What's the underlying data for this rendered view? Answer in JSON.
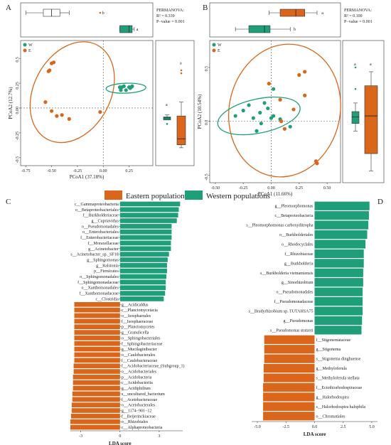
{
  "colors": {
    "W": "#1f9e7a",
    "E": "#d9661a",
    "box": "#555555"
  },
  "legend": {
    "eastern": "Eastern populations",
    "western": "Western populations"
  },
  "chart_data": [
    {
      "panel": "A",
      "type": "scatter",
      "xlabel": "PCoA1 (37.18%)",
      "ylabel": "PCoA2 (12.7%)",
      "xlim": [
        -0.8,
        0.48
      ],
      "ylim": [
        -0.58,
        0.68
      ],
      "xticks": [
        "-0.75",
        "-0.50",
        "-0.25",
        "0.00",
        "0.25"
      ],
      "yticks": [
        "0.5",
        "0.25",
        "0.00",
        "-0.25",
        "-0.5"
      ],
      "legend": [
        "W",
        "E"
      ],
      "permanova": [
        "PERMANOVA:",
        "R² = 0.339",
        "P−value = 0.001"
      ],
      "top_box_letters": [
        "b",
        "a"
      ],
      "side_box_letters": [
        "a",
        "a"
      ],
      "series": [
        {
          "name": "W",
          "points": [
            [
              0.16,
              0.21
            ],
            [
              0.18,
              0.21
            ],
            [
              0.2,
              0.22
            ],
            [
              0.22,
              0.18
            ],
            [
              0.25,
              0.21
            ],
            [
              0.26,
              0.2
            ],
            [
              0.27,
              0.21
            ],
            [
              0.28,
              0.22
            ],
            [
              0.17,
              0.18
            ]
          ]
        },
        {
          "name": "E",
          "points": [
            [
              -0.5,
              0.45
            ],
            [
              -0.48,
              0.46
            ],
            [
              -0.53,
              0.37
            ],
            [
              -0.52,
              0.38
            ],
            [
              -0.56,
              0.06
            ],
            [
              -0.5,
              -0.03
            ],
            [
              -0.45,
              -0.08
            ],
            [
              -0.4,
              -0.07
            ],
            [
              -0.33,
              -0.11
            ],
            [
              -0.03,
              -0.04
            ]
          ]
        }
      ]
    },
    {
      "panel": "B",
      "type": "scatter",
      "xlabel": "PCoA1 (11.66%)",
      "ylabel": "PCoA2 (10.54%)",
      "xlim": [
        -0.55,
        0.62
      ],
      "ylim": [
        -0.57,
        0.75
      ],
      "xticks": [
        "-0.50",
        "-0.25",
        "0.00",
        "0.25",
        "0.50"
      ],
      "yticks": [
        "0.5",
        "0.0",
        "-0.5"
      ],
      "legend": [
        "W",
        "E"
      ],
      "permanova": [
        "PERMANOVA:",
        "R² = 0.100",
        "P−value = 0.001"
      ],
      "top_box_letters": [
        "a",
        "b"
      ],
      "side_box_letters": [
        "a",
        "a"
      ],
      "series": [
        {
          "name": "W",
          "points": [
            [
              -0.32,
              0.05
            ],
            [
              -0.25,
              0.1
            ],
            [
              -0.2,
              0.15
            ],
            [
              -0.16,
              0.03
            ],
            [
              -0.1,
              0.08
            ],
            [
              -0.09,
              -0.02
            ],
            [
              -0.06,
              0.17
            ],
            [
              -0.03,
              0.12
            ],
            [
              0.0,
              0.03
            ],
            [
              0.02,
              0.05
            ],
            [
              0.08,
              0.02
            ],
            [
              0.02,
              0.3
            ],
            [
              0.17,
              -0.05
            ],
            [
              -0.13,
              -0.09
            ]
          ]
        },
        {
          "name": "E",
          "points": [
            [
              -0.02,
              0.35
            ],
            [
              0.25,
              0.43
            ],
            [
              0.3,
              0.46
            ],
            [
              0.3,
              0.24
            ],
            [
              0.2,
              0.11
            ],
            [
              0.08,
              0.2
            ],
            [
              0.09,
              0.0
            ],
            [
              0.12,
              -0.07
            ],
            [
              0.4,
              -0.37
            ],
            [
              0.41,
              -0.39
            ]
          ]
        }
      ]
    },
    {
      "panel": "C",
      "type": "bar",
      "xlabel": "LDA score",
      "xlim": [
        -3.8,
        4.8
      ],
      "xticks": [
        {
          "v": -3,
          "l": "-3"
        },
        {
          "v": 0,
          "l": "0"
        },
        {
          "v": 3,
          "l": "3"
        }
      ],
      "bars": [
        {
          "label": "c__Gammaproteobacteria",
          "value": 4.6
        },
        {
          "label": "o__Betaproteobacteriales",
          "value": 4.5
        },
        {
          "label": "f__Burkholderiaceae",
          "value": 4.45
        },
        {
          "label": "g__Cupriavidus",
          "value": 4.35
        },
        {
          "label": "o__Pseudomonadales",
          "value": 3.95
        },
        {
          "label": "o__Enterobacteriales",
          "value": 3.95
        },
        {
          "label": "f__Enterobacteriaceae",
          "value": 3.95
        },
        {
          "label": "f__Moraxellaceae",
          "value": 3.9
        },
        {
          "label": "g__Acinetobacter",
          "value": 3.9
        },
        {
          "label": "s__Acinetobacter_sp._SF18",
          "value": 3.75
        },
        {
          "label": "g__Sphingomonas",
          "value": 3.65
        },
        {
          "label": "g__Ralstonia",
          "value": 3.6
        },
        {
          "label": "p__Firmicutes",
          "value": 3.6
        },
        {
          "label": "o__Sphingomonadales",
          "value": 3.55
        },
        {
          "label": "f__Sphingomonadaceae",
          "value": 3.5
        },
        {
          "label": "o__Xanthomonadales",
          "value": 3.5
        },
        {
          "label": "f__Xanthomonadaceae",
          "value": 3.45
        },
        {
          "label": "c__Clostridia",
          "value": 3.35
        },
        {
          "label": "g__Acidicaldus",
          "value": -3.5
        },
        {
          "label": "c__Planctomycetacia",
          "value": -3.5
        },
        {
          "label": "o__Isosphaerales",
          "value": -3.5
        },
        {
          "label": "f__Isosphaeraceae",
          "value": -3.5
        },
        {
          "label": "p__Planctomycetes",
          "value": -3.5
        },
        {
          "label": "g__Granulicella",
          "value": -3.5
        },
        {
          "label": "o__Sphingobacteriales",
          "value": -3.5
        },
        {
          "label": "f__Sphingobacteriaceae",
          "value": -3.5
        },
        {
          "label": "g__Mucilaginibacter",
          "value": -3.5
        },
        {
          "label": "o__Caulobacterales",
          "value": -3.5
        },
        {
          "label": "f__Caulobacteraceae",
          "value": -3.5
        },
        {
          "label": "f__Acidobacteriaceae_(Subgroup_1)",
          "value": -3.55
        },
        {
          "label": "o__Acidobacteriales",
          "value": -3.55
        },
        {
          "label": "p__Acidobacteria",
          "value": -3.6
        },
        {
          "label": "c__Acidobacteriia",
          "value": -3.6
        },
        {
          "label": "g__Acidiphilium",
          "value": -3.6
        },
        {
          "label": "s__uncultured_bacterium",
          "value": -3.65
        },
        {
          "label": "f__Acetobacteraceae",
          "value": -3.65
        },
        {
          "label": "o__Acetobacterales",
          "value": -3.7
        },
        {
          "label": "g__1174−901−12",
          "value": -3.7
        },
        {
          "label": "f__Beijerinckiaceae",
          "value": -3.75
        },
        {
          "label": "o__Rhizobiales",
          "value": -3.8
        },
        {
          "label": "c__Alphaproteobacteria",
          "value": -3.8
        }
      ]
    },
    {
      "panel": "D",
      "type": "bar",
      "xlabel": "LDA score",
      "xlim": [
        -5.5,
        5.5
      ],
      "xticks": [
        {
          "v": -5,
          "l": "-5.0"
        },
        {
          "v": -2.5,
          "l": "-2.5"
        },
        {
          "v": 0,
          "l": "0.0"
        },
        {
          "v": 2.5,
          "l": "2.5"
        },
        {
          "v": 5,
          "l": "5.0"
        }
      ],
      "bars": [
        {
          "label": "g__Pleomorphomonas",
          "value": 4.8
        },
        {
          "label": "c__Betaproteobacteria",
          "value": 4.75
        },
        {
          "label": "s__Pleomorphomonas carboxyditropha",
          "value": 4.7
        },
        {
          "label": "o__Burkholderiales",
          "value": 4.6
        },
        {
          "label": "o__Rhodocyclales",
          "value": 4.45
        },
        {
          "label": "f__Rhizobiaceae",
          "value": 4.3
        },
        {
          "label": "g__Burkholderia",
          "value": 4.3
        },
        {
          "label": "s__Burkholderia vietnamiensis",
          "value": 4.25
        },
        {
          "label": "g__Sinorhizobium",
          "value": 4.25
        },
        {
          "label": "o__Pseudomonadales",
          "value": 4.2
        },
        {
          "label": "f__Pseudomonadaceae",
          "value": 4.2
        },
        {
          "label": "s__Bradyrhizobium sp. TUTAHSA75",
          "value": 4.2
        },
        {
          "label": "g__Pseudomonas",
          "value": 4.15
        },
        {
          "label": "s__Pseudomonas stutzeri",
          "value": 4.1
        },
        {
          "label": "f__Stigonemataceae",
          "value": -4.4
        },
        {
          "label": "g__Stigonema",
          "value": -4.4
        },
        {
          "label": "s__Stigonema dinghuense",
          "value": -4.4
        },
        {
          "label": "g__Methyloferula",
          "value": -4.45
        },
        {
          "label": "s__Methyloferula stellata",
          "value": -4.45
        },
        {
          "label": "f__Ectothiorhodospiraceae",
          "value": -4.5
        },
        {
          "label": "g__Halorhodospira",
          "value": -4.5
        },
        {
          "label": "s__Halorhodospira halophila",
          "value": -4.5
        },
        {
          "label": "o__Chromatiales",
          "value": -4.5
        }
      ]
    }
  ]
}
